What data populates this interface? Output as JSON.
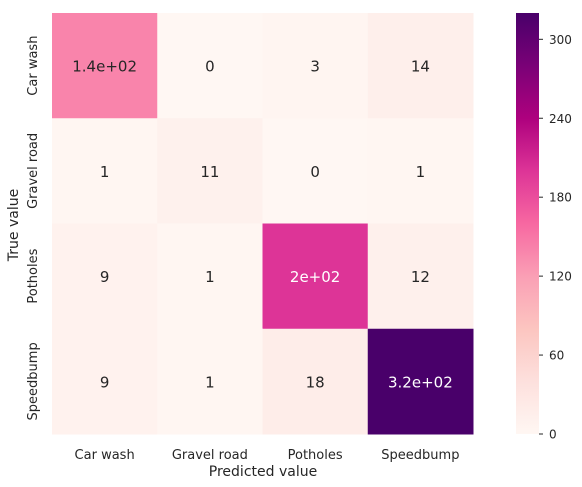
{
  "chart_data": {
    "type": "heatmap",
    "title": "",
    "xlabel": "Predicted value",
    "ylabel": "True value",
    "x_categories": [
      "Car wash",
      "Gravel road",
      "Potholes",
      "Speedbump"
    ],
    "y_categories": [
      "Car wash",
      "Gravel road",
      "Potholes",
      "Speedbump"
    ],
    "values": [
      [
        140,
        0,
        3,
        14
      ],
      [
        1,
        11,
        0,
        1
      ],
      [
        9,
        1,
        200,
        12
      ],
      [
        9,
        1,
        18,
        320
      ]
    ],
    "cell_labels": [
      [
        "1.4e+02",
        "0",
        "3",
        "14"
      ],
      [
        "1",
        "11",
        "0",
        "1"
      ],
      [
        "9",
        "1",
        "2e+02",
        "12"
      ],
      [
        "9",
        "1",
        "18",
        "3.2e+02"
      ]
    ],
    "colorbar": {
      "vmin": 0,
      "vmax": 320,
      "ticks": [
        0,
        60,
        120,
        180,
        240,
        300
      ],
      "tick_labels": [
        "0",
        "60",
        "120",
        "180",
        "240",
        "300"
      ]
    },
    "colormap": "RdPu",
    "colormap_stops": [
      "#fff7f3",
      "#fde0dd",
      "#fcc5c0",
      "#fa9fb5",
      "#f768a1",
      "#dd3497",
      "#ae017e",
      "#7a0177",
      "#49006a"
    ],
    "grid": false
  }
}
